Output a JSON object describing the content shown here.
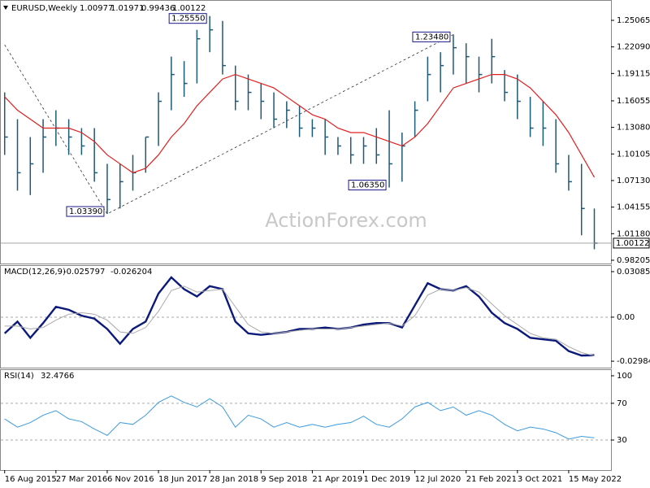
{
  "chart_data": [
    {
      "type": "ohlc",
      "symbol": "EURUSD,Weekly",
      "last_bar": {
        "open": 1.00977,
        "high": 1.01971,
        "low": 0.99436,
        "close": 1.00122
      },
      "watermark": "ActionForex.com",
      "xlim": [
        -0.3,
        47.3
      ],
      "ylim": [
        0.9793,
        1.2716
      ],
      "yticks": [
        1.25065,
        {
          "value": 1.2209,
          "label": "1.22090"
        },
        1.19115,
        1.16055,
        {
          "value": 1.1308,
          "label": "1.13080"
        },
        1.10105,
        {
          "value": 1.0713,
          "label": "1.07130"
        },
        1.04155,
        {
          "value": 1.0118,
          "label": "1.01180"
        },
        0.98205
      ],
      "color": "#1d5a78",
      "high": [
        1.17,
        1.14,
        1.12,
        1.14,
        1.15,
        1.14,
        1.13,
        1.13,
        1.09,
        1.09,
        1.1,
        1.12,
        1.17,
        1.21,
        1.205,
        1.24,
        1.2555,
        1.25,
        1.2,
        1.19,
        1.18,
        1.17,
        1.16,
        1.155,
        1.14,
        1.14,
        1.12,
        1.12,
        1.12,
        1.13,
        1.15,
        1.125,
        1.16,
        1.21,
        1.215,
        1.2348,
        1.225,
        1.21,
        1.23,
        1.195,
        1.19,
        1.165,
        1.16,
        1.14,
        1.1,
        1.09,
        1.04
      ],
      "low": [
        1.1,
        1.06,
        1.055,
        1.08,
        1.11,
        1.1,
        1.1,
        1.07,
        1.0339,
        1.04,
        1.06,
        1.08,
        1.11,
        1.15,
        1.165,
        1.18,
        1.215,
        1.19,
        1.15,
        1.15,
        1.14,
        1.13,
        1.13,
        1.12,
        1.12,
        1.1,
        1.1,
        1.09,
        1.09,
        1.09,
        1.0635,
        1.07,
        1.12,
        1.16,
        1.17,
        1.19,
        1.18,
        1.17,
        1.18,
        1.16,
        1.14,
        1.12,
        1.11,
        1.08,
        1.06,
        1.01,
        0.99436
      ],
      "close": [
        1.12,
        1.08,
        1.09,
        1.12,
        1.13,
        1.12,
        1.11,
        1.08,
        1.05,
        1.07,
        1.08,
        1.12,
        1.16,
        1.19,
        1.18,
        1.23,
        1.24,
        1.2,
        1.16,
        1.17,
        1.16,
        1.14,
        1.15,
        1.13,
        1.13,
        1.12,
        1.11,
        1.1,
        1.11,
        1.1,
        1.09,
        1.11,
        1.15,
        1.19,
        1.2,
        1.22,
        1.21,
        1.19,
        1.21,
        1.17,
        1.16,
        1.13,
        1.13,
        1.09,
        1.07,
        1.04,
        1.00122
      ],
      "moving_average": {
        "color": "#e02020",
        "values": [
          1.165,
          1.15,
          1.14,
          1.13,
          1.13,
          1.13,
          1.125,
          1.115,
          1.1,
          1.09,
          1.08,
          1.085,
          1.1,
          1.12,
          1.135,
          1.155,
          1.17,
          1.185,
          1.19,
          1.185,
          1.18,
          1.175,
          1.165,
          1.155,
          1.145,
          1.14,
          1.13,
          1.125,
          1.125,
          1.12,
          1.115,
          1.11,
          1.12,
          1.135,
          1.155,
          1.175,
          1.18,
          1.185,
          1.19,
          1.19,
          1.185,
          1.175,
          1.16,
          1.145,
          1.125,
          1.1,
          1.075
        ]
      },
      "zigzag": {
        "x": [
          0,
          8,
          35
        ],
        "values": [
          1.2233,
          1.0339,
          1.2348
        ]
      },
      "annotations": [
        {
          "x": 8,
          "value": 1.0339,
          "label": "1.03390"
        },
        {
          "x": 16,
          "value": 1.2555,
          "label": "1.25550"
        },
        {
          "x": 30,
          "value": 1.0635,
          "label": "1.06350"
        },
        {
          "x": 35,
          "value": 1.2348,
          "label": "1.23480"
        }
      ]
    },
    {
      "type": "line",
      "title": "MACD(12,26,9)",
      "xlim": [
        -0.3,
        47.3
      ],
      "ylim": [
        -0.0342,
        0.0347
      ],
      "yticks": [
        0.030855,
        {
          "value": 0,
          "label": "0.00"
        },
        -0.029841
      ],
      "zero_line": true,
      "series": [
        {
          "color": "#0b1a7a",
          "width": 2.4,
          "values": [
            -0.011,
            -0.003,
            -0.014,
            -0.004,
            0.007,
            0.005,
            0.001,
            -0.001,
            -0.008,
            -0.018,
            -0.008,
            -0.003,
            0.016,
            0.027,
            0.019,
            0.014,
            0.021,
            0.019,
            -0.003,
            -0.011,
            -0.012,
            -0.011,
            -0.01,
            -0.008,
            -0.008,
            -0.007,
            -0.008,
            -0.007,
            -0.005,
            -0.004,
            -0.004,
            -0.007,
            0.008,
            0.023,
            0.019,
            0.018,
            0.021,
            0.014,
            0.003,
            -0.004,
            -0.008,
            -0.014,
            -0.015,
            -0.016,
            -0.023,
            -0.026,
            -0.025797
          ]
        },
        {
          "color": "#aaaaaa",
          "width": 1,
          "values": [
            -0.006,
            -0.006,
            -0.008,
            -0.007,
            -0.002,
            0.002,
            0.003,
            0.002,
            -0.002,
            -0.01,
            -0.011,
            -0.007,
            0.004,
            0.018,
            0.021,
            0.017,
            0.018,
            0.019,
            0.007,
            -0.005,
            -0.01,
            -0.011,
            -0.01,
            -0.009,
            -0.008,
            -0.008,
            -0.008,
            -0.007,
            -0.006,
            -0.005,
            -0.004,
            -0.006,
            0.001,
            0.015,
            0.019,
            0.018,
            0.02,
            0.017,
            0.009,
            0.001,
            -0.005,
            -0.011,
            -0.014,
            -0.015,
            -0.02,
            -0.024,
            -0.026204
          ]
        }
      ]
    },
    {
      "type": "line",
      "title": "RSI(14)",
      "xlim": [
        -0.3,
        47.3
      ],
      "ylim": [
        -2.8,
        106.2
      ],
      "yticks": [
        100,
        70,
        30
      ],
      "levels": [
        70,
        30
      ],
      "xticks": [
        {
          "value": 0,
          "label": "16 Aug 2015"
        },
        {
          "value": 4,
          "label": "27 Mar 2016"
        },
        {
          "value": 8,
          "label": "6 Nov 2016"
        },
        {
          "value": 12,
          "label": "18 Jun 2017"
        },
        {
          "value": 16,
          "label": "28 Jan 2018"
        },
        {
          "value": 20,
          "label": "9 Sep 2018"
        },
        {
          "value": 24,
          "label": "21 Apr 2019"
        },
        {
          "value": 28,
          "label": "1 Dec 2019"
        },
        {
          "value": 32,
          "label": "12 Jul 2020"
        },
        {
          "value": 36,
          "label": "21 Feb 2021"
        },
        {
          "value": 40,
          "label": "3 Oct 2021"
        },
        {
          "value": 44,
          "label": "15 May 2022"
        }
      ],
      "series": [
        {
          "color": "#3d9be0",
          "width": 1,
          "values": [
            53,
            44,
            49,
            57,
            62,
            53,
            50,
            42,
            35,
            49,
            47,
            57,
            71,
            78,
            71,
            66,
            75,
            66,
            44,
            57,
            53,
            44,
            49,
            44,
            47,
            44,
            47,
            49,
            56,
            47,
            44,
            53,
            66,
            71,
            62,
            66,
            57,
            62,
            57,
            47,
            40,
            44,
            42,
            38,
            31,
            34,
            32.4766
          ]
        }
      ]
    }
  ]
}
